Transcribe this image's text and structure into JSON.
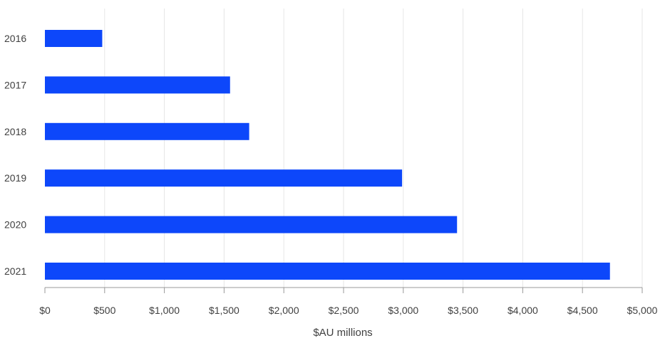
{
  "chart_data": {
    "type": "bar",
    "orientation": "horizontal",
    "categories": [
      "2016",
      "2017",
      "2018",
      "2019",
      "2020",
      "2021"
    ],
    "values": [
      480,
      1550,
      1710,
      2990,
      3450,
      4730
    ],
    "title": "",
    "xlabel": "$AU millions",
    "ylabel": "",
    "xlim": [
      0,
      5000
    ],
    "x_ticks": [
      0,
      500,
      1000,
      1500,
      2000,
      2500,
      3000,
      3500,
      4000,
      4500,
      5000
    ],
    "x_tick_labels": [
      "$0",
      "$500",
      "$1,000",
      "$1,500",
      "$2,000",
      "$2,500",
      "$3,000",
      "$3,500",
      "$4,000",
      "$4,500",
      "$5,000"
    ],
    "grid": "vertical",
    "legend": "none",
    "bar_color": "#0D47FA",
    "grid_color": "#E6E6E6",
    "axis_color": "#999999"
  }
}
